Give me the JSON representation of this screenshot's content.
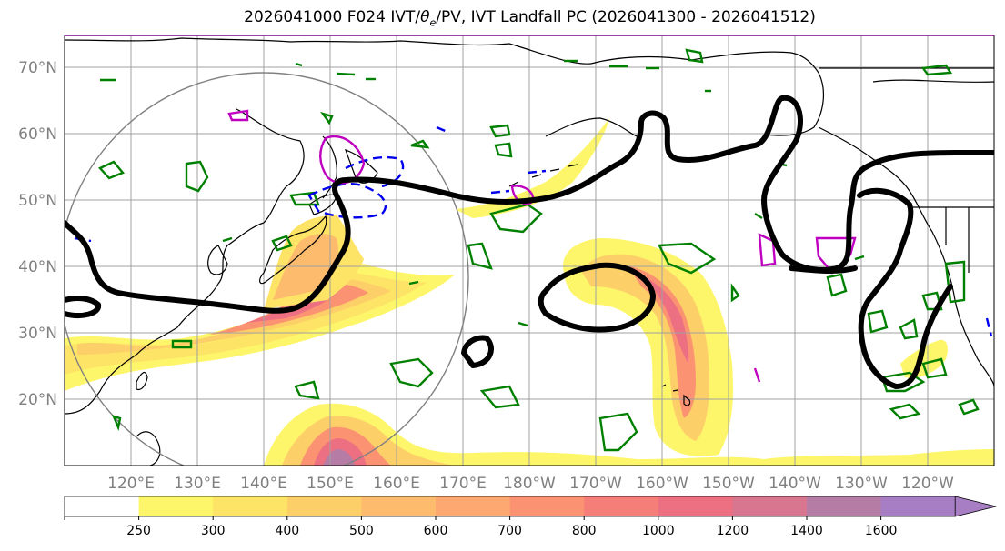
{
  "title": "2026041000 F024 IVT/θe/PV, IVT Landfall PC (2026041300 - 2026041512)",
  "title_parts": {
    "prefix": "2026041000 F024 IVT/",
    "theta": "θ",
    "theta_sub": "e",
    "suffix": "/PV, IVT Landfall PC (2026041300 - 2026041512)"
  },
  "lat_labels": [
    "70°N",
    "60°N",
    "50°N",
    "40°N",
    "30°N",
    "20°N"
  ],
  "lon_labels": [
    "120°E",
    "130°E",
    "140°E",
    "150°E",
    "160°E",
    "170°E",
    "180°W",
    "170°W",
    "160°W",
    "150°W",
    "140°W",
    "130°W",
    "120°W"
  ],
  "colorbar": {
    "ticks": [
      "250",
      "300",
      "400",
      "500",
      "600",
      "700",
      "800",
      "1000",
      "1200",
      "1400",
      "1600"
    ],
    "colors": [
      "#ffffff",
      "#fdf66a",
      "#fde466",
      "#fdcf68",
      "#fdbb6d",
      "#fda870",
      "#fb9372",
      "#f67e78",
      "#ec6f82",
      "#d7768e",
      "#b57da6",
      "#a77dc4"
    ]
  },
  "colors": {
    "theta_e_contour": "#000000",
    "pv_positive": "#008000",
    "pv_negative": "#0000ee",
    "magenta_contour": "#c000c0",
    "landfall_circle": "#808080",
    "coastline": "#000000",
    "grid": "#a0a0a0"
  },
  "icons": [
    "colorbar-extend-arrow-icon"
  ]
}
